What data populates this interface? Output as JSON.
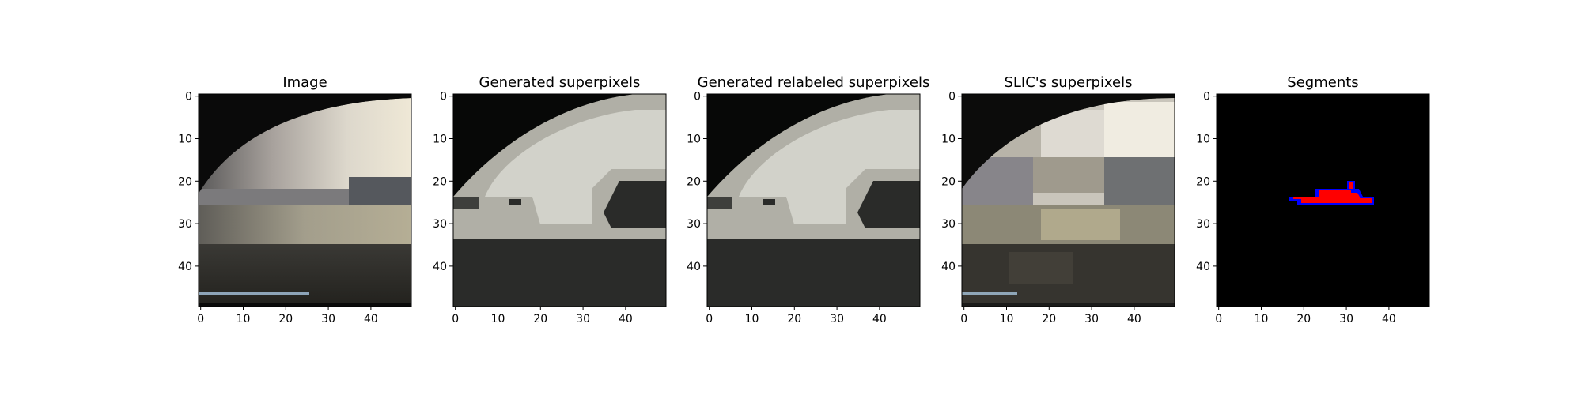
{
  "figure": {
    "background": "#ffffff"
  },
  "chart_data": [
    {
      "type": "image",
      "title": "Image",
      "xlim": [
        0,
        49
      ],
      "ylim": [
        49,
        0
      ],
      "x_ticks": [
        "0",
        "10",
        "20",
        "30",
        "40"
      ],
      "y_ticks": [
        "0",
        "10",
        "20",
        "30",
        "40"
      ],
      "grid": false,
      "content": "photo-low-res"
    },
    {
      "type": "image",
      "title": "Generated superpixels",
      "xlim": [
        0,
        49
      ],
      "ylim": [
        49,
        0
      ],
      "x_ticks": [
        "0",
        "10",
        "20",
        "30",
        "40"
      ],
      "y_ticks": [
        "0",
        "10",
        "20",
        "30",
        "40"
      ],
      "grid": false,
      "content": "gray-superpixels",
      "colors": {
        "dark": "#2a2b29",
        "mid": "#b0afa6",
        "light": "#d2d2ca",
        "black": "#070807"
      }
    },
    {
      "type": "image",
      "title": "Generated relabeled superpixels",
      "xlim": [
        0,
        49
      ],
      "ylim": [
        49,
        0
      ],
      "x_ticks": [
        "0",
        "10",
        "20",
        "30",
        "40"
      ],
      "y_ticks": [
        "0",
        "10",
        "20",
        "30",
        "40"
      ],
      "grid": false,
      "content": "gray-superpixels",
      "colors": {
        "dark": "#2a2b29",
        "mid": "#b0afa6",
        "light": "#d2d2ca",
        "black": "#070807"
      }
    },
    {
      "type": "image",
      "title": "SLIC's superpixels",
      "xlim": [
        0,
        49
      ],
      "ylim": [
        49,
        0
      ],
      "x_ticks": [
        "0",
        "10",
        "20",
        "30",
        "40"
      ],
      "y_ticks": [
        "0",
        "10",
        "20",
        "30",
        "40"
      ],
      "grid": false,
      "content": "slic-superpixels"
    },
    {
      "type": "image",
      "title": "Segments",
      "xlim": [
        0,
        49
      ],
      "ylim": [
        49,
        0
      ],
      "x_ticks": [
        "0",
        "10",
        "20",
        "30",
        "40"
      ],
      "y_ticks": [
        "0",
        "10",
        "20",
        "30",
        "40"
      ],
      "grid": false,
      "content": "segment-mask",
      "colors": {
        "background": "#000000",
        "fill": "#ff0000",
        "border": "#0000ff"
      }
    }
  ]
}
